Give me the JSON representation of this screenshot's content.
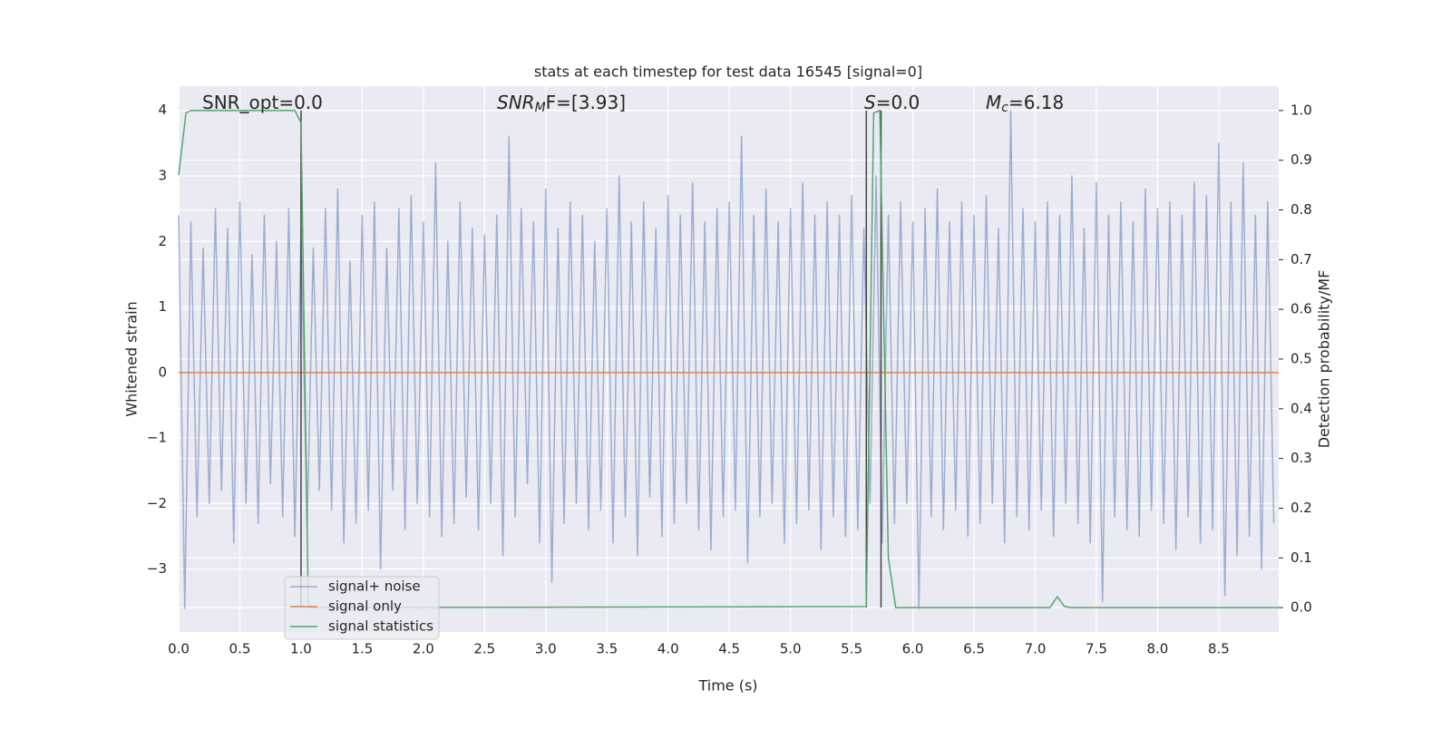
{
  "chart_data": {
    "type": "line",
    "title": "stats at each timestep for test data 16545 [signal=0]",
    "xlabel": "Time (s)",
    "ylabel": "Whitened strain",
    "y2label": "Detection probability/MF",
    "annotations": [
      {
        "text": "SNR_opt=0.0"
      },
      {
        "italic": "SNR",
        "sub": "M",
        "text": "F=[3.93]"
      },
      {
        "italic": "S",
        "text": "=0.0"
      },
      {
        "italic": "M",
        "sub": "c",
        "text": "=6.18"
      }
    ],
    "xlim": [
      0,
      8.99
    ],
    "ylim": [
      -3.96,
      4.37
    ],
    "y2lim": [
      -0.049,
      1.049
    ],
    "xticks": [
      {
        "value": 0,
        "label": "0.0"
      },
      {
        "value": 0.5,
        "label": "0.5"
      },
      {
        "value": 1,
        "label": "1.0"
      },
      {
        "value": 1.5,
        "label": "1.5"
      },
      {
        "value": 2,
        "label": "2.0"
      },
      {
        "value": 2.5,
        "label": "2.5"
      },
      {
        "value": 3,
        "label": "3.0"
      },
      {
        "value": 3.5,
        "label": "3.5"
      },
      {
        "value": 4,
        "label": "4.0"
      },
      {
        "value": 4.5,
        "label": "4.5"
      },
      {
        "value": 5,
        "label": "5.0"
      },
      {
        "value": 5.5,
        "label": "5.5"
      },
      {
        "value": 6,
        "label": "6.0"
      },
      {
        "value": 6.5,
        "label": "6.5"
      },
      {
        "value": 7,
        "label": "7.0"
      },
      {
        "value": 7.5,
        "label": "7.5"
      },
      {
        "value": 8,
        "label": "8.0"
      },
      {
        "value": 8.5,
        "label": "8.5"
      }
    ],
    "yticks": [
      {
        "value": -3,
        "label": "−3"
      },
      {
        "value": -2,
        "label": "−2"
      },
      {
        "value": -1,
        "label": "−1"
      },
      0,
      1,
      2,
      3,
      4
    ],
    "y2ticks": [
      {
        "value": 0,
        "label": "0.0"
      },
      {
        "value": 0.1,
        "label": "0.1"
      },
      {
        "value": 0.2,
        "label": "0.2"
      },
      {
        "value": 0.3,
        "label": "0.3"
      },
      {
        "value": 0.4,
        "label": "0.4"
      },
      {
        "value": 0.5,
        "label": "0.5"
      },
      {
        "value": 0.6,
        "label": "0.6"
      },
      {
        "value": 0.7,
        "label": "0.7"
      },
      {
        "value": 0.8,
        "label": "0.8"
      },
      {
        "value": 0.9,
        "label": "0.9"
      },
      {
        "value": 1,
        "label": "1.0"
      }
    ],
    "grid": true,
    "legend_loc": "lower left",
    "series": [
      {
        "name": "signal+ noise",
        "color": "#4c72b0",
        "opacity": 0.5,
        "x": [
          0,
          0.05,
          0.1,
          0.15,
          0.2,
          0.25,
          0.3,
          0.35,
          0.4,
          0.45,
          0.5,
          0.55,
          0.6,
          0.65,
          0.7,
          0.75,
          0.8,
          0.85,
          0.9,
          0.95,
          1,
          1.05,
          1.1,
          1.15,
          1.2,
          1.25,
          1.3,
          1.35,
          1.4,
          1.45,
          1.5,
          1.55,
          1.6,
          1.65,
          1.7,
          1.75,
          1.8,
          1.85,
          1.9,
          1.95,
          2,
          2.05,
          2.1,
          2.15,
          2.2,
          2.25,
          2.3,
          2.35,
          2.4,
          2.45,
          2.5,
          2.55,
          2.6,
          2.65,
          2.7,
          2.75,
          2.8,
          2.85,
          2.9,
          2.95,
          3,
          3.05,
          3.1,
          3.15,
          3.2,
          3.25,
          3.3,
          3.35,
          3.4,
          3.45,
          3.5,
          3.55,
          3.6,
          3.65,
          3.7,
          3.75,
          3.8,
          3.85,
          3.9,
          3.95,
          4,
          4.05,
          4.1,
          4.15,
          4.2,
          4.25,
          4.3,
          4.35,
          4.4,
          4.45,
          4.5,
          4.55,
          4.6,
          4.65,
          4.7,
          4.75,
          4.8,
          4.85,
          4.9,
          4.95,
          5,
          5.05,
          5.1,
          5.15,
          5.2,
          5.25,
          5.3,
          5.35,
          5.4,
          5.45,
          5.5,
          5.55,
          5.6,
          5.65,
          5.7,
          5.75,
          5.8,
          5.85,
          5.9,
          5.95,
          6,
          6.05,
          6.1,
          6.15,
          6.2,
          6.25,
          6.3,
          6.35,
          6.4,
          6.45,
          6.5,
          6.55,
          6.6,
          6.65,
          6.7,
          6.75,
          6.8,
          6.85,
          6.9,
          6.95,
          7,
          7.05,
          7.1,
          7.15,
          7.2,
          7.25,
          7.3,
          7.35,
          7.4,
          7.45,
          7.5,
          7.55,
          7.6,
          7.65,
          7.7,
          7.75,
          7.8,
          7.85,
          7.9,
          7.95,
          8,
          8.05,
          8.1,
          8.15,
          8.2,
          8.25,
          8.3,
          8.35,
          8.4,
          8.45,
          8.5,
          8.55,
          8.6,
          8.65,
          8.7,
          8.75,
          8.8,
          8.85,
          8.9,
          8.95
        ],
        "values": [
          2.4,
          -3.6,
          2.3,
          -2.2,
          1.9,
          -2.0,
          2.5,
          -1.8,
          2.2,
          -2.6,
          2.6,
          -2.0,
          1.8,
          -2.3,
          2.4,
          -1.7,
          2.0,
          -2.2,
          2.5,
          -2.5,
          2.2,
          -2.4,
          1.9,
          -1.8,
          2.5,
          -2.1,
          2.8,
          -2.6,
          1.7,
          -2.3,
          2.4,
          -2.1,
          2.6,
          -3.0,
          1.9,
          -1.8,
          2.5,
          -2.4,
          2.7,
          -2.0,
          2.3,
          -2.2,
          3.2,
          -2.5,
          2.0,
          -2.3,
          2.6,
          -1.9,
          2.2,
          -2.4,
          2.1,
          -2.0,
          2.4,
          -2.8,
          3.6,
          -2.2,
          2.5,
          -1.7,
          2.3,
          -2.6,
          2.8,
          -3.2,
          2.2,
          -2.3,
          2.6,
          -2.0,
          2.4,
          -2.4,
          2.0,
          -2.1,
          2.5,
          -2.6,
          3.0,
          -2.2,
          2.3,
          -2.8,
          2.6,
          -1.9,
          2.2,
          -2.5,
          2.7,
          -2.3,
          2.4,
          -2.0,
          2.9,
          -2.4,
          2.3,
          -2.7,
          2.5,
          -2.2,
          2.6,
          -2.1,
          3.6,
          -2.9,
          2.4,
          -2.2,
          2.8,
          -2.0,
          2.3,
          -2.6,
          2.5,
          -2.3,
          2.9,
          -2.1,
          2.4,
          -2.7,
          2.6,
          -2.2,
          2.4,
          -2.5,
          2.7,
          -2.4,
          2.2,
          -2.0,
          3.0,
          -2.6,
          2.4,
          -2.3,
          2.6,
          -2.0,
          2.3,
          -3.6,
          2.5,
          -2.2,
          2.8,
          -2.4,
          2.3,
          -2.1,
          2.6,
          -2.5,
          2.4,
          -2.3,
          2.7,
          -2.0,
          2.2,
          -2.6,
          4.0,
          -2.2,
          2.5,
          -2.4,
          2.3,
          -2.1,
          2.6,
          -2.5,
          2.4,
          -2.0,
          3.0,
          -2.3,
          2.2,
          -2.6,
          2.9,
          -3.5,
          2.4,
          -2.2,
          2.6,
          -2.4,
          2.3,
          -2.5,
          2.8,
          -2.1,
          2.5,
          -2.3,
          2.6,
          -2.7,
          2.4,
          -2.2,
          2.9,
          -2.6,
          2.7,
          -2.4,
          3.5,
          -3.4,
          2.6,
          -2.8,
          3.2,
          -2.5,
          2.4,
          -3.0,
          2.6,
          -2.3
        ]
      },
      {
        "name": "signal only",
        "color": "#dd8452",
        "x": [
          0,
          8.99
        ],
        "values": [
          0,
          0
        ]
      },
      {
        "name": "signal statistics",
        "color": "#55a868",
        "axis": "y2",
        "x": [
          0,
          0.06,
          0.1,
          0.95,
          1.0,
          1.06,
          5.62,
          5.68,
          5.73,
          5.8,
          5.86,
          7.12,
          7.18,
          7.24,
          7.3,
          8.99
        ],
        "values": [
          0.87,
          0.995,
          1.0,
          1.0,
          0.975,
          0.0,
          0.002,
          0.995,
          1.0,
          0.1,
          0.0,
          0.0,
          0.022,
          0.002,
          0.0,
          0.0
        ]
      }
    ],
    "vlines": {
      "color": "#444444",
      "x": [
        1.0,
        5.62,
        5.74
      ]
    }
  }
}
